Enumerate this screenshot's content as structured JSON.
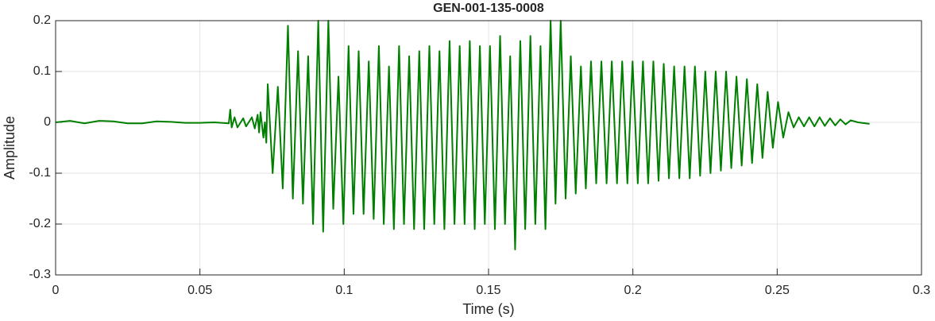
{
  "chart_data": {
    "type": "line",
    "title": "GEN-001-135-0008",
    "xlabel": "Time (s)",
    "ylabel": "Amplitude",
    "color": "#007f00",
    "grid": true,
    "xlim": [
      0,
      0.3
    ],
    "xticks": [
      0,
      0.05,
      0.1,
      0.15,
      0.2,
      0.25,
      0.3
    ],
    "ylim": [
      -0.3,
      0.2
    ],
    "yticks": [
      0.2,
      0.1,
      0,
      -0.1,
      -0.2,
      -0.3
    ],
    "x": [
      0,
      0.005,
      0.01,
      0.015,
      0.02,
      0.025,
      0.03,
      0.035,
      0.04,
      0.045,
      0.05,
      0.055,
      0.06,
      0.0605,
      0.061,
      0.062,
      0.063,
      0.065,
      0.066,
      0.068,
      0.069,
      0.07,
      0.0705,
      0.071,
      0.072,
      0.0725,
      0.073,
      0.0735,
      0.0752,
      0.077,
      0.0787,
      0.0805,
      0.0822,
      0.084,
      0.0857,
      0.0875,
      0.0892,
      0.091,
      0.0927,
      0.0945,
      0.0962,
      0.098,
      0.0997,
      0.1015,
      0.1032,
      0.105,
      0.1067,
      0.1085,
      0.1102,
      0.112,
      0.1137,
      0.1155,
      0.1172,
      0.119,
      0.1207,
      0.1225,
      0.1242,
      0.126,
      0.1277,
      0.1295,
      0.1312,
      0.133,
      0.1347,
      0.1365,
      0.1382,
      0.14,
      0.1417,
      0.1435,
      0.1452,
      0.147,
      0.1487,
      0.1505,
      0.1522,
      0.154,
      0.1557,
      0.1575,
      0.1592,
      0.161,
      0.1627,
      0.1645,
      0.1662,
      0.168,
      0.1697,
      0.1715,
      0.1732,
      0.175,
      0.1767,
      0.1785,
      0.1802,
      0.182,
      0.1837,
      0.1855,
      0.1873,
      0.1891,
      0.1909,
      0.1927,
      0.1945,
      0.1963,
      0.1981,
      0.1999,
      0.2017,
      0.2035,
      0.2053,
      0.2071,
      0.2089,
      0.2107,
      0.2125,
      0.2143,
      0.2161,
      0.2179,
      0.2197,
      0.2215,
      0.2233,
      0.2251,
      0.2269,
      0.2287,
      0.2305,
      0.2323,
      0.2341,
      0.2359,
      0.2377,
      0.2395,
      0.2413,
      0.2431,
      0.2449,
      0.2467,
      0.2485,
      0.2503,
      0.2521,
      0.2539,
      0.2557,
      0.2575,
      0.2593,
      0.2611,
      0.2629,
      0.2647,
      0.2665,
      0.2683,
      0.2701,
      0.2719,
      0.2737,
      0.2755,
      0.278,
      0.282
    ],
    "values": [
      0,
      0.003,
      -0.002,
      0.003,
      0.002,
      -0.002,
      -0.002,
      0.002,
      0.001,
      -0.001,
      -0.001,
      0,
      -0.002,
      0.025,
      -0.01,
      0.01,
      -0.01,
      0.008,
      -0.008,
      0.01,
      -0.012,
      0.015,
      -0.02,
      0.02,
      -0.03,
      0,
      -0.04,
      0.075,
      -0.1,
      0.07,
      -0.13,
      0.19,
      -0.15,
      0.14,
      -0.16,
      0.13,
      -0.2,
      0.2,
      -0.215,
      0.2,
      -0.17,
      0.09,
      -0.2,
      0.15,
      -0.18,
      0.14,
      -0.18,
      0.12,
      -0.19,
      0.15,
      -0.2,
      0.11,
      -0.21,
      0.15,
      -0.2,
      0.13,
      -0.21,
      0.14,
      -0.21,
      0.15,
      -0.2,
      0.14,
      -0.21,
      0.16,
      -0.2,
      0.15,
      -0.2,
      0.16,
      -0.21,
      0.15,
      -0.2,
      0.15,
      -0.21,
      0.17,
      -0.2,
      0.13,
      -0.25,
      0.16,
      -0.21,
      0.17,
      -0.2,
      0.15,
      -0.21,
      0.2,
      -0.16,
      0.2,
      -0.15,
      0.13,
      -0.14,
      0.11,
      -0.13,
      0.12,
      -0.12,
      0.12,
      -0.12,
      0.12,
      -0.12,
      0.12,
      -0.12,
      0.12,
      -0.12,
      0.12,
      -0.12,
      0.12,
      -0.115,
      0.115,
      -0.11,
      0.11,
      -0.11,
      0.11,
      -0.11,
      0.11,
      -0.105,
      0.1,
      -0.1,
      0.1,
      -0.095,
      0.1,
      -0.09,
      0.09,
      -0.085,
      0.085,
      -0.08,
      0.075,
      -0.07,
      0.06,
      -0.05,
      0.04,
      -0.03,
      0.02,
      -0.01,
      0.01,
      -0.008,
      0.01,
      -0.008,
      0.01,
      -0.007,
      0.008,
      -0.006,
      0.006,
      -0.004,
      0.004,
      0,
      -0.003
    ]
  }
}
